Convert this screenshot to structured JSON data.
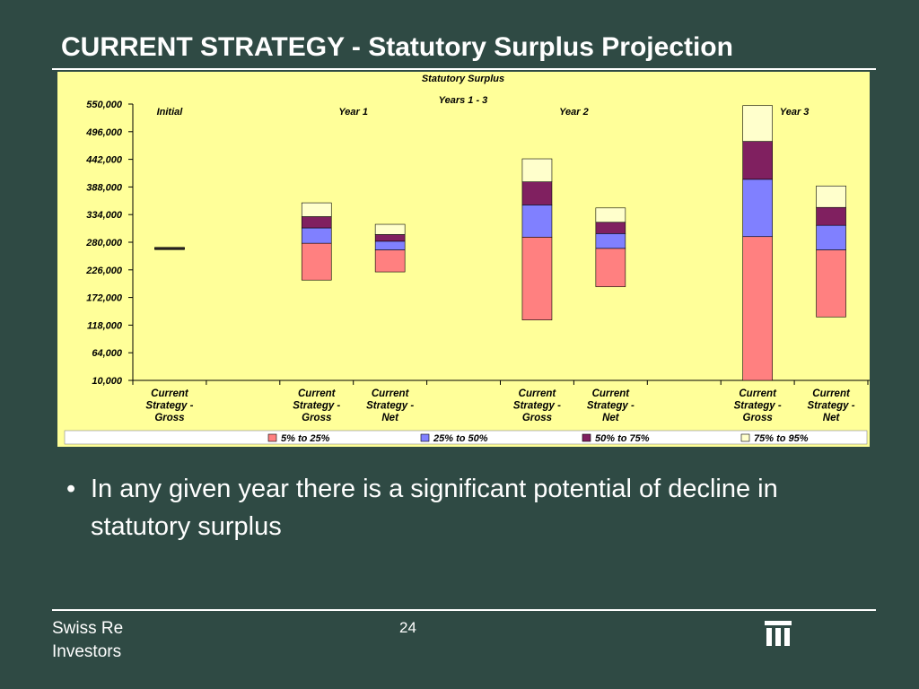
{
  "slide": {
    "title": "CURRENT STRATEGY - Statutory Surplus Projection",
    "bullet": "In any given year there is a significant potential of decline in statutory surplus",
    "footer_line1": "Swiss Re",
    "footer_line2": "Investors",
    "page_number": "24",
    "colors": {
      "background": "#2F4A44",
      "chart_bg": "#FFFF99"
    },
    "logo_icon": "swiss-re-logo-icon"
  },
  "chart_data": {
    "type": "bar",
    "subtype": "floating-stacked",
    "title": "Statutory Surplus",
    "subtitle": "Years 1 - 3",
    "ylim": [
      10000,
      550000
    ],
    "yticks": [
      "550,000",
      "496,000",
      "442,000",
      "388,000",
      "334,000",
      "280,000",
      "226,000",
      "172,000",
      "118,000",
      "64,000",
      "10,000"
    ],
    "ytick_values": [
      550000,
      496000,
      442000,
      388000,
      334000,
      280000,
      226000,
      172000,
      118000,
      64000,
      10000
    ],
    "grid": false,
    "legend_position": "bottom",
    "group_labels": [
      {
        "text": "Initial",
        "slot": 0
      },
      {
        "text": "Year 1",
        "slot": 2.5
      },
      {
        "text": "Year 2",
        "slot": 5.5
      },
      {
        "text": "Year 3",
        "slot": 8.5
      }
    ],
    "categories": [
      {
        "label": [
          "Current",
          "Strategy -",
          "Gross"
        ],
        "slot": 0,
        "base": 266000,
        "segments": [
          1000,
          1000,
          1000,
          1000
        ]
      },
      {
        "label": [
          "Current",
          "Strategy -",
          "Gross"
        ],
        "slot": 2,
        "base": 206000,
        "segments": [
          72000,
          30000,
          22000,
          27000
        ]
      },
      {
        "label": [
          "Current",
          "Strategy -",
          "Net"
        ],
        "slot": 3,
        "base": 222000,
        "segments": [
          43000,
          17000,
          13000,
          20000
        ]
      },
      {
        "label": [
          "Current",
          "Strategy -",
          "Gross"
        ],
        "slot": 5,
        "base": 128000,
        "segments": [
          162000,
          63000,
          45000,
          45000
        ]
      },
      {
        "label": [
          "Current",
          "Strategy -",
          "Net"
        ],
        "slot": 6,
        "base": 193000,
        "segments": [
          75000,
          29000,
          22000,
          28000
        ]
      },
      {
        "label": [
          "Current",
          "Strategy -",
          "Gross"
        ],
        "slot": 8,
        "base": 10000,
        "segments": [
          281000,
          112000,
          74000,
          70000
        ]
      },
      {
        "label": [
          "Current",
          "Strategy -",
          "Net"
        ],
        "slot": 9,
        "base": 134000,
        "segments": [
          131000,
          48000,
          35000,
          42000
        ]
      }
    ],
    "series": [
      {
        "name": "5% to 25%",
        "color": "#FF8080"
      },
      {
        "name": "25% to 50%",
        "color": "#8080FF"
      },
      {
        "name": "50% to 75%",
        "color": "#802060"
      },
      {
        "name": "75% to 95%",
        "color": "#FFFFCC"
      }
    ]
  }
}
